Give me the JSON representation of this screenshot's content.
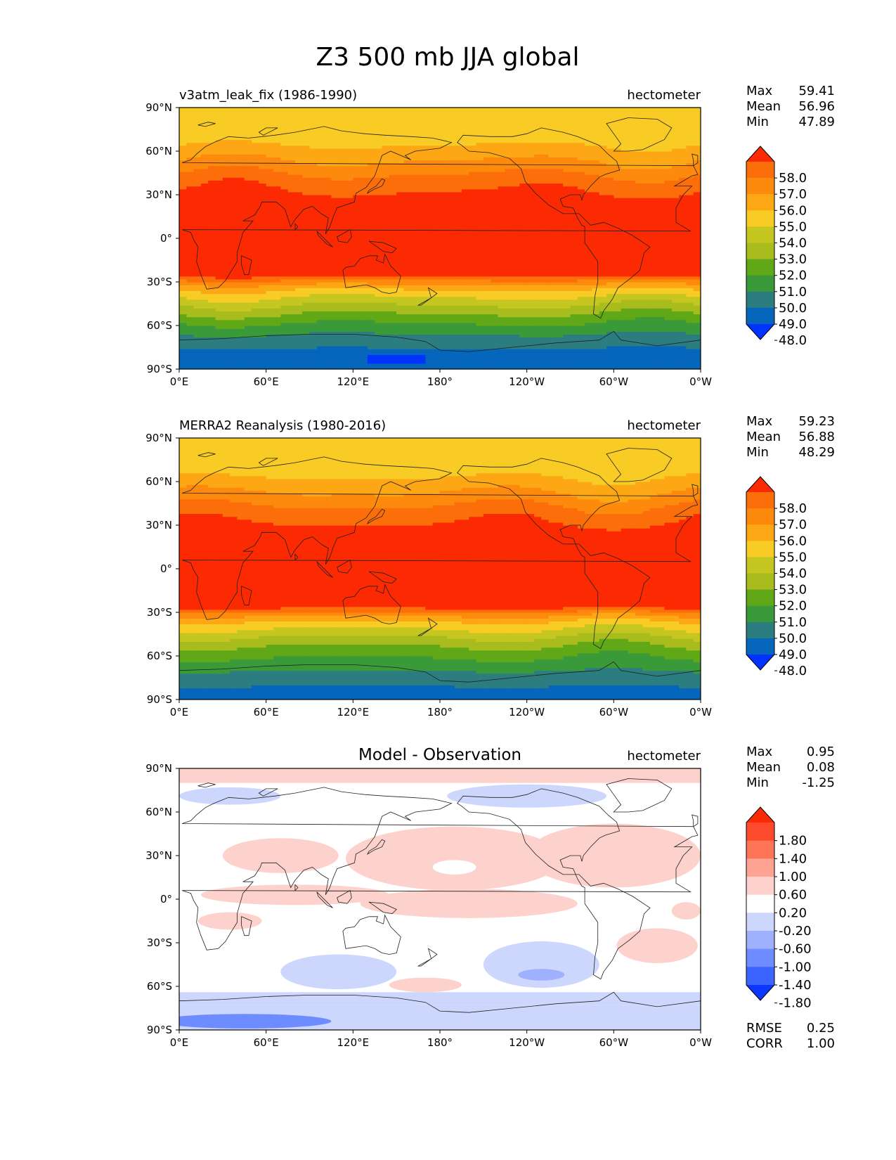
{
  "title": "Z3 500 mb JJA global",
  "colors": {
    "abs": [
      "#0033ff",
      "#0566bb",
      "#2b7d80",
      "#3a9a3a",
      "#60a817",
      "#a8bd1d",
      "#c6c620",
      "#f8cb25",
      "#fda714",
      "#fd8a0c",
      "#fc6e0a",
      "#fc2a03"
    ],
    "diff": [
      "#0b37fe",
      "#3c64ff",
      "#6d8cff",
      "#9eb0fe",
      "#cdd7fd",
      "#ffffff",
      "#fdd2cc",
      "#fea394",
      "#fe7457",
      "#fe4a2c",
      "#fc2a03"
    ],
    "land": "#202020"
  },
  "chart_data": [
    {
      "type": "heatmap",
      "subtitle_left": "v3atm_leak_fix (1986-1990)",
      "subtitle_center": "",
      "units": "hectometer",
      "stats": [
        {
          "label": "Max",
          "value": "59.41"
        },
        {
          "label": "Mean",
          "value": "56.96"
        },
        {
          "label": "Min",
          "value": "47.89"
        }
      ],
      "xticks": [
        "0°E",
        "60°E",
        "120°E",
        "180°",
        "120°W",
        "60°W",
        "0°W"
      ],
      "yticks": [
        "90°N",
        "60°N",
        "30°N",
        "0°",
        "30°S",
        "60°S",
        "90°S"
      ],
      "xlim": [
        0,
        360
      ],
      "ylim": [
        -90,
        90
      ],
      "colorbar": {
        "labels": [
          "58.0",
          "57.0",
          "56.0",
          "55.0",
          "54.0",
          "53.0",
          "52.0",
          "51.0",
          "50.0",
          "49.0",
          "48.0"
        ],
        "levels": [
          48,
          49,
          50,
          51,
          52,
          53,
          54,
          55,
          56,
          57,
          58
        ],
        "extend": "both"
      },
      "zonal_profile": {
        "lat": [
          -90,
          -80,
          -70,
          -62,
          -55,
          -48,
          -42,
          -36,
          -30,
          -25,
          0,
          25,
          40,
          48,
          55,
          62,
          68,
          75,
          90
        ],
        "value": [
          48.0,
          48.6,
          49.5,
          50.5,
          51.5,
          52.6,
          53.7,
          54.8,
          56.5,
          58.5,
          58.9,
          58.5,
          57.5,
          56.6,
          55.9,
          55.2,
          54.7,
          54.3,
          54.0
        ]
      },
      "low_patch": {
        "lon": 150,
        "lat": -83,
        "value": 47.9
      }
    },
    {
      "type": "heatmap",
      "subtitle_left": "MERRA2 Reanalysis (1980-2016)",
      "subtitle_center": "",
      "units": "hectometer",
      "stats": [
        {
          "label": "Max",
          "value": "59.23"
        },
        {
          "label": "Mean",
          "value": "56.88"
        },
        {
          "label": "Min",
          "value": "48.29"
        }
      ],
      "xticks": [
        "0°E",
        "60°E",
        "120°E",
        "180°",
        "120°W",
        "60°W",
        "0°W"
      ],
      "yticks": [
        "90°N",
        "60°N",
        "30°N",
        "0°",
        "30°S",
        "60°S",
        "90°S"
      ],
      "xlim": [
        0,
        360
      ],
      "ylim": [
        -90,
        90
      ],
      "colorbar": {
        "labels": [
          "58.0",
          "57.0",
          "56.0",
          "55.0",
          "54.0",
          "53.0",
          "52.0",
          "51.0",
          "50.0",
          "49.0",
          "48.0"
        ],
        "levels": [
          48,
          49,
          50,
          51,
          52,
          53,
          54,
          55,
          56,
          57,
          58
        ],
        "extend": "both"
      },
      "zonal_profile": {
        "lat": [
          -90,
          -82,
          -72,
          -64,
          -56,
          -49,
          -43,
          -37,
          -31,
          -26,
          0,
          25,
          40,
          48,
          55,
          62,
          68,
          75,
          90
        ],
        "value": [
          48.6,
          48.9,
          49.8,
          50.7,
          51.6,
          52.6,
          53.7,
          54.8,
          56.4,
          58.5,
          58.9,
          58.5,
          57.4,
          56.5,
          55.8,
          55.1,
          54.6,
          54.2,
          54.0
        ]
      }
    },
    {
      "type": "heatmap",
      "subtitle_left": "",
      "subtitle_center": "Model - Observation",
      "units": "hectometer",
      "stats": [
        {
          "label": "Max",
          "value": "0.95"
        },
        {
          "label": "Mean",
          "value": "0.08"
        },
        {
          "label": "Min",
          "value": "-1.25"
        }
      ],
      "metrics": [
        {
          "label": "RMSE",
          "value": "0.25"
        },
        {
          "label": "CORR",
          "value": "1.00"
        }
      ],
      "xticks": [
        "0°E",
        "60°E",
        "120°E",
        "180°",
        "120°W",
        "60°W",
        "0°W"
      ],
      "yticks": [
        "90°N",
        "60°N",
        "30°N",
        "0°",
        "30°S",
        "60°S",
        "90°S"
      ],
      "xlim": [
        0,
        360
      ],
      "ylim": [
        -90,
        90
      ],
      "colorbar": {
        "labels": [
          "1.80",
          "1.40",
          "1.00",
          "0.60",
          "0.20",
          "-0.20",
          "-0.60",
          "-1.00",
          "-1.40",
          "-1.80"
        ],
        "levels": [
          -1.8,
          -1.4,
          -1.0,
          -0.6,
          -0.2,
          0.2,
          0.6,
          1.0,
          1.4,
          1.8
        ],
        "extend": "both"
      },
      "anomaly_regions": [
        {
          "kind": "band",
          "lat_min": 80,
          "lat_max": 90,
          "value": 0.3
        },
        {
          "kind": "band",
          "lat_min": -90,
          "lat_max": -73,
          "value": -0.4
        },
        {
          "kind": "band",
          "lat_min": -73,
          "lat_max": -64,
          "value": -0.3
        },
        {
          "kind": "ellipse",
          "lon": 45,
          "lat": -84,
          "rlon": 60,
          "rlat": 5,
          "value": -1.05
        },
        {
          "kind": "ellipse",
          "lon": 35,
          "lat": 71,
          "rlon": 35,
          "rlat": 6,
          "value": -0.35
        },
        {
          "kind": "ellipse",
          "lon": 240,
          "lat": 71,
          "rlon": 55,
          "rlat": 8,
          "value": -0.35
        },
        {
          "kind": "ellipse",
          "lon": 110,
          "lat": -50,
          "rlon": 40,
          "rlat": 12,
          "value": -0.4
        },
        {
          "kind": "ellipse",
          "lon": 250,
          "lat": -45,
          "rlon": 40,
          "rlat": 16,
          "value": -0.4
        },
        {
          "kind": "ellipse",
          "lon": 250,
          "lat": -52,
          "rlon": 16,
          "rlat": 4,
          "value": -0.8
        },
        {
          "kind": "ellipse",
          "lon": 190,
          "lat": 28,
          "rlon": 75,
          "rlat": 22,
          "value": 0.35
        },
        {
          "kind": "ellipse",
          "lon": 300,
          "lat": 30,
          "rlon": 60,
          "rlat": 22,
          "value": 0.35
        },
        {
          "kind": "ellipse",
          "lon": 70,
          "lat": 30,
          "rlon": 40,
          "rlat": 12,
          "value": 0.3
        },
        {
          "kind": "ellipse",
          "lon": 80,
          "lat": 3,
          "rlon": 65,
          "rlat": 7,
          "value": 0.3
        },
        {
          "kind": "ellipse",
          "lon": 200,
          "lat": -3,
          "rlon": 75,
          "rlat": 10,
          "value": 0.3
        },
        {
          "kind": "ellipse",
          "lon": 330,
          "lat": -32,
          "rlon": 28,
          "rlat": 12,
          "value": 0.35
        },
        {
          "kind": "ellipse",
          "lon": 35,
          "lat": -15,
          "rlon": 22,
          "rlat": 6,
          "value": 0.3
        },
        {
          "kind": "ellipse",
          "lon": 170,
          "lat": -59,
          "rlon": 25,
          "rlat": 5,
          "value": 0.3
        },
        {
          "kind": "ellipse",
          "lon": 350,
          "lat": -8,
          "rlon": 10,
          "rlat": 6,
          "value": 0.3
        },
        {
          "kind": "ellipse",
          "lon": 190,
          "lat": 22,
          "rlon": 15,
          "rlat": 5,
          "value": 0.0
        }
      ]
    }
  ]
}
